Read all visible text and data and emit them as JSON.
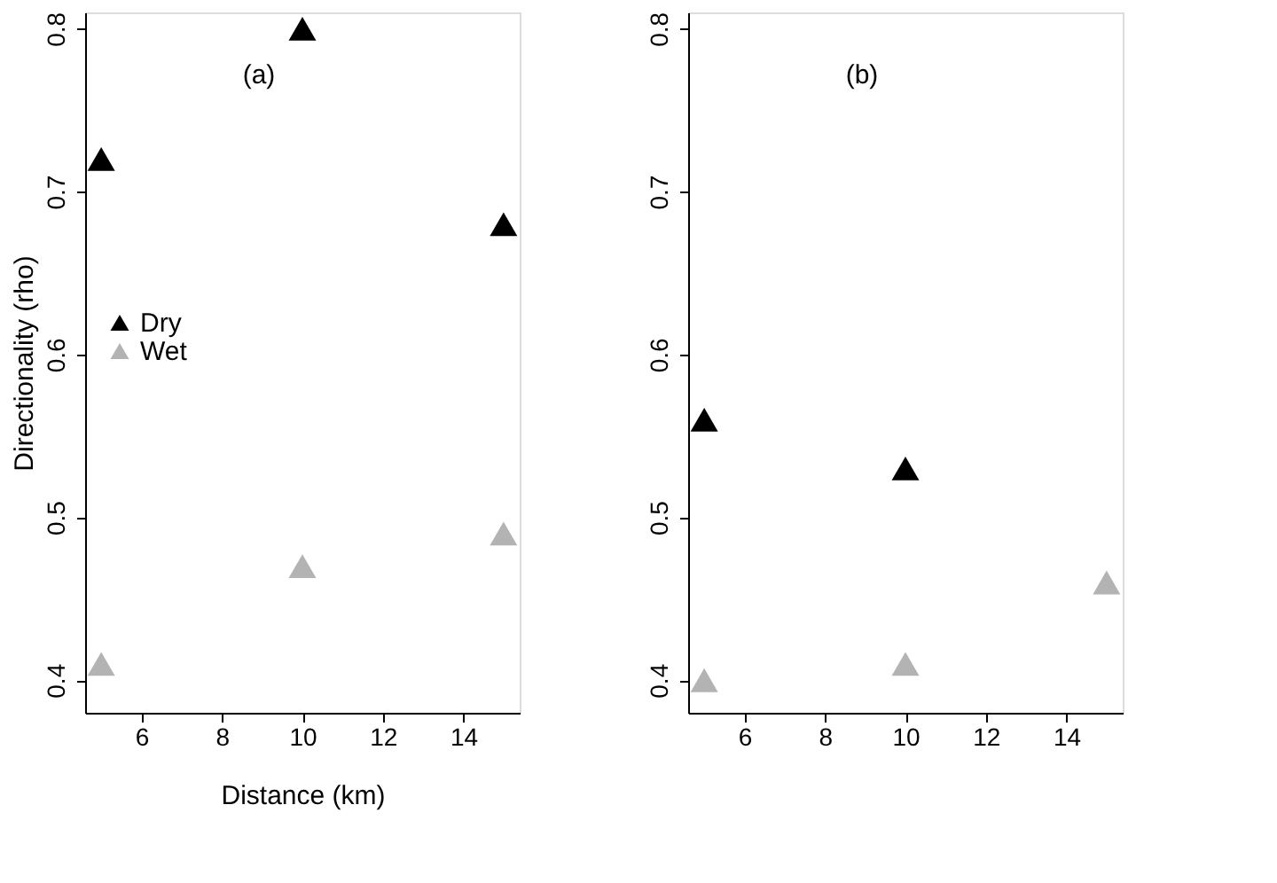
{
  "chart_data": [
    {
      "type": "scatter",
      "annotations": [
        "(a)"
      ],
      "xlabel": "Distance (km)",
      "ylabel": "Directionality (rho)",
      "x": [
        5,
        10,
        15
      ],
      "series": [
        {
          "name": "Dry",
          "color": "#000000",
          "values": [
            0.72,
            0.8,
            0.68
          ]
        },
        {
          "name": "Wet",
          "color": "#b3b3b3",
          "values": [
            0.41,
            0.47,
            0.49
          ]
        }
      ],
      "xlim": [
        4.6,
        15.4
      ],
      "xticks": [
        6,
        8,
        10,
        12,
        14
      ],
      "ylim": [
        0.38,
        0.81
      ],
      "yticks": [
        0.4,
        0.5,
        0.6,
        0.7,
        0.8
      ],
      "marker": "triangle",
      "legend": "left",
      "grid": false
    },
    {
      "type": "scatter",
      "annotations": [
        "(b)"
      ],
      "x": [
        5,
        10,
        15
      ],
      "series": [
        {
          "color": "#000000",
          "values": [
            0.56,
            0.53,
            null
          ]
        },
        {
          "color": "#b3b3b3",
          "values": [
            0.4,
            0.41,
            0.46
          ]
        }
      ],
      "xlim": [
        4.6,
        15.4
      ],
      "xticks": [
        6,
        8,
        10,
        12,
        14
      ],
      "ylim": [
        0.38,
        0.81
      ],
      "yticks": [
        0.4,
        0.5,
        0.6,
        0.7,
        0.8
      ],
      "marker": "triangle",
      "legend": false,
      "grid": false
    }
  ]
}
